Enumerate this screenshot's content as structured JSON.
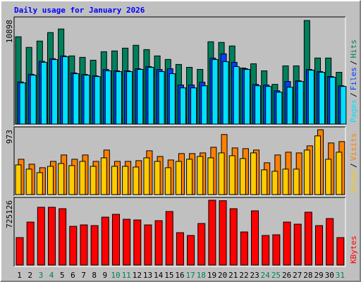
{
  "title": "Daily usage for January 2026",
  "chart_data": [
    {
      "type": "bar",
      "ylim": [
        0,
        10898
      ],
      "yticks": [
        10898
      ],
      "legend_separator": "/",
      "series": [
        {
          "name": "Hits",
          "color": "#00805c",
          "values": [
            9120,
            8010,
            8670,
            9560,
            9930,
            7120,
            6970,
            6670,
            7560,
            7640,
            7930,
            8230,
            7780,
            7120,
            6750,
            6230,
            5930,
            5710,
            8600,
            8530,
            8160,
            5860,
            6300,
            5560,
            4150,
            6080,
            6080,
            10820,
            6900,
            6900,
            5410
          ]
        },
        {
          "name": "Files",
          "color": "#0040ff",
          "values": [
            4400,
            5200,
            6550,
            6830,
            7120,
            5340,
            5190,
            5040,
            5700,
            5560,
            5560,
            5780,
            6000,
            5700,
            5780,
            4080,
            4080,
            4370,
            6890,
            7340,
            6450,
            5780,
            4150,
            4080,
            3480,
            4450,
            4520,
            5710,
            5480,
            4970,
            4000
          ]
        },
        {
          "name": "Pages",
          "color": "#00e0ff",
          "values": [
            4300,
            5110,
            6450,
            6740,
            7040,
            5260,
            5110,
            4960,
            5560,
            5480,
            5480,
            5710,
            5930,
            5480,
            5260,
            3780,
            3780,
            4000,
            6740,
            6520,
            6000,
            5710,
            4000,
            3930,
            3330,
            3850,
            4450,
            5630,
            5410,
            4890,
            3930
          ]
        }
      ]
    },
    {
      "type": "bar",
      "ylim": [
        0,
        973
      ],
      "yticks": [
        973
      ],
      "legend_separator": "/",
      "series": [
        {
          "name": "Visits",
          "color": "#ff8000",
          "values": [
            530,
            456,
            403,
            498,
            594,
            530,
            594,
            498,
            668,
            498,
            498,
            509,
            657,
            572,
            519,
            615,
            615,
            625,
            710,
            901,
            700,
            689,
            668,
            477,
            594,
            636,
            625,
            731,
            973,
            774,
            795
          ]
        },
        {
          "name": "Sites",
          "color": "#ffcc00",
          "values": [
            445,
            382,
            329,
            424,
            466,
            435,
            498,
            424,
            551,
            424,
            424,
            413,
            551,
            498,
            403,
            498,
            530,
            572,
            551,
            625,
            583,
            541,
            625,
            371,
            350,
            382,
            382,
            668,
            880,
            530,
            636
          ]
        }
      ]
    },
    {
      "type": "bar",
      "ylim": [
        0,
        725126
      ],
      "yticks": [
        725126
      ],
      "categories": [
        "1",
        "2",
        "3",
        "4",
        "5",
        "6",
        "7",
        "8",
        "9",
        "10",
        "11",
        "12",
        "13",
        "14",
        "15",
        "16",
        "17",
        "18",
        "19",
        "20",
        "21",
        "22",
        "23",
        "24",
        "25",
        "26",
        "27",
        "28",
        "29",
        "30",
        "31"
      ],
      "highlight_categories": [
        "3",
        "4",
        "10",
        "11",
        "17",
        "18",
        "24",
        "25",
        "31"
      ],
      "highlight_color": "#00805c",
      "series": [
        {
          "name": "KBytes",
          "color": "#ff0000",
          "values": [
            307400,
            480800,
            646300,
            646300,
            630600,
            433500,
            449300,
            441400,
            536000,
            567500,
            512300,
            504400,
            449300,
            496600,
            599000,
            362600,
            331000,
            465000,
            725126,
            720000,
            630600,
            370500,
            606900,
            331000,
            338900,
            480800,
            457200,
            591200,
            441400,
            520200,
            307400
          ]
        }
      ]
    }
  ]
}
